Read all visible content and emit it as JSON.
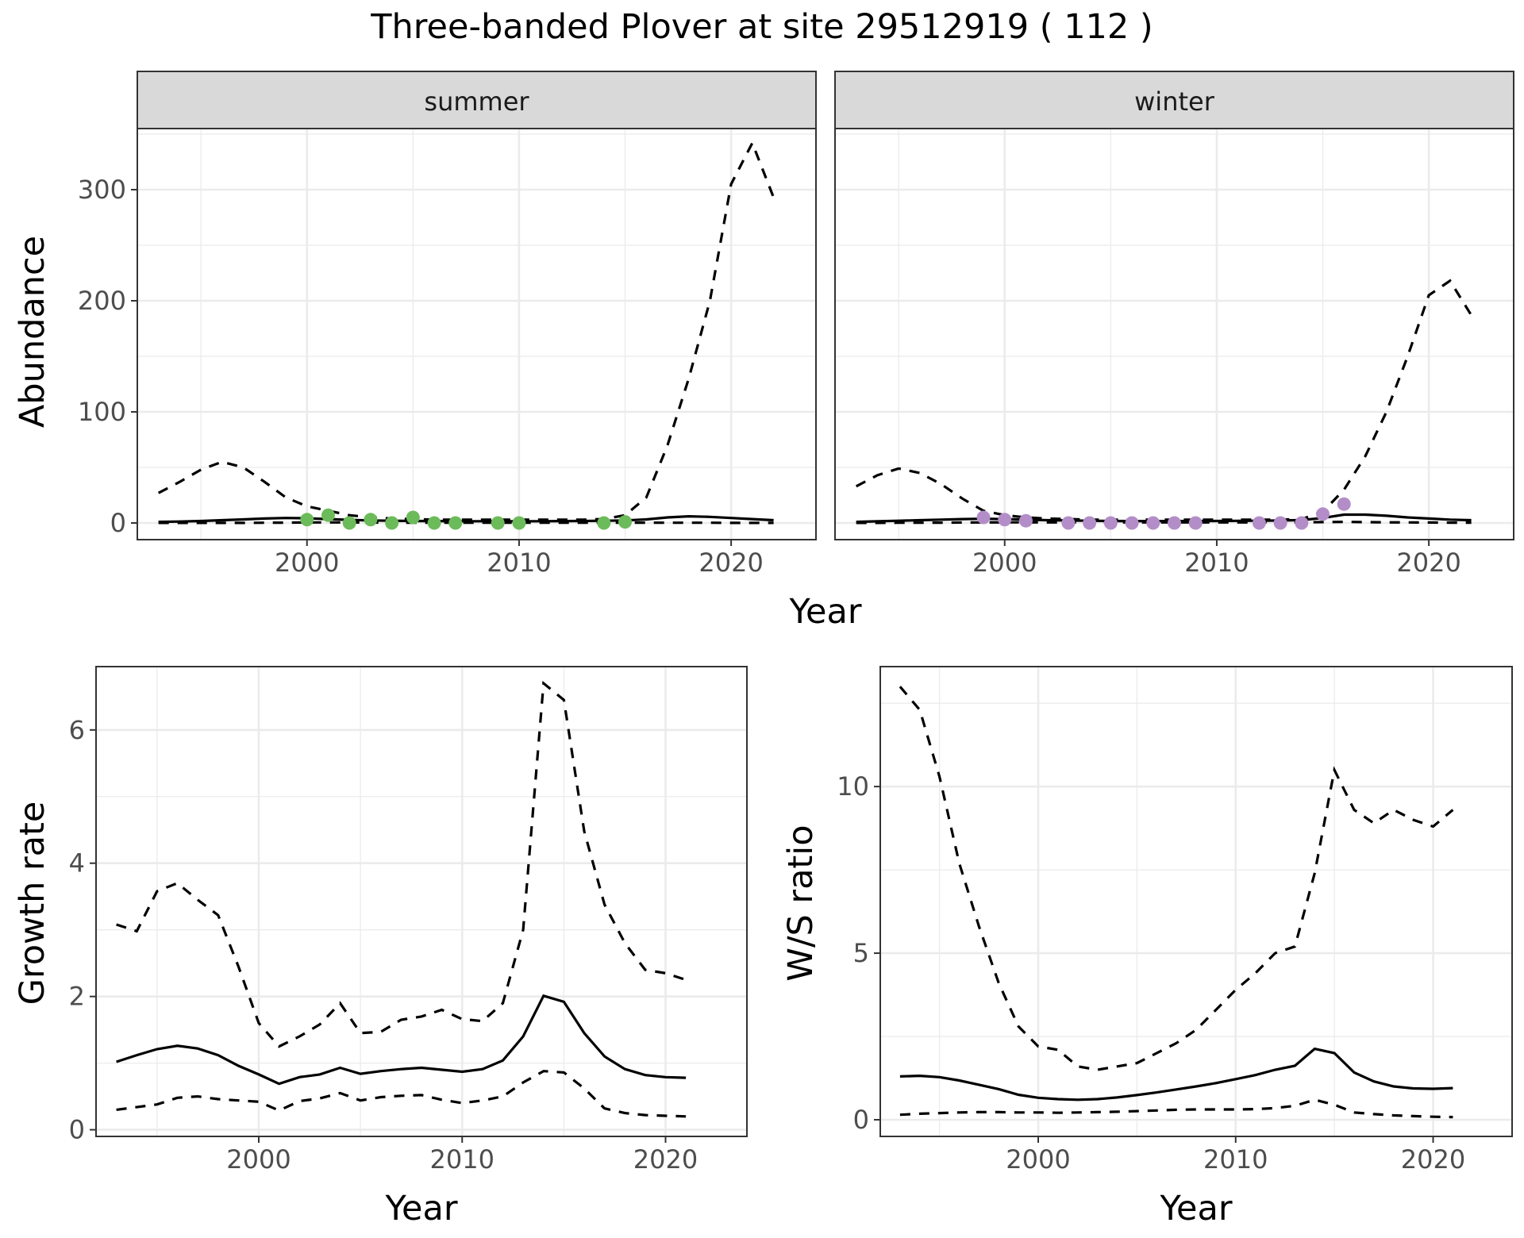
{
  "figure_title": "Three-banded Plover at site 29512919 ( 112 )",
  "colors": {
    "summer_points": "#6cbb5a",
    "winter_points": "#b38dc8",
    "lines": "#000000",
    "strip_fill": "#d9d9d9"
  },
  "chart_data": [
    {
      "type": "line",
      "facet": "summer",
      "xlabel": "Year",
      "ylabel": "Abundance",
      "xlim": [
        1992,
        2024
      ],
      "ylim": [
        -15,
        355
      ],
      "x_ticks": [
        2000,
        2010,
        2020
      ],
      "y_ticks": [
        0,
        100,
        200,
        300
      ],
      "grid": true,
      "x": [
        1993,
        1994,
        1995,
        1996,
        1997,
        1998,
        1999,
        2000,
        2001,
        2002,
        2003,
        2004,
        2005,
        2006,
        2007,
        2008,
        2009,
        2010,
        2011,
        2012,
        2013,
        2014,
        2015,
        2016,
        2017,
        2018,
        2019,
        2020,
        2021,
        2022
      ],
      "series": [
        {
          "role": "estimate",
          "style": "solid",
          "values": [
            1,
            1.3,
            1.8,
            2.5,
            3.2,
            4,
            4.5,
            4.2,
            3.5,
            2.8,
            2.3,
            2,
            1.8,
            1.7,
            1.6,
            1.6,
            1.6,
            1.6,
            1.6,
            1.7,
            1.8,
            2,
            2.3,
            3.2,
            5,
            6,
            5.5,
            4.5,
            3.5,
            2.5
          ]
        },
        {
          "role": "upper",
          "style": "dashed",
          "values": [
            27,
            37,
            48,
            55,
            50,
            37,
            23,
            15,
            11,
            7,
            5,
            4,
            3.5,
            3,
            3,
            3,
            3,
            3,
            3,
            3,
            3,
            3.5,
            7,
            23,
            70,
            130,
            200,
            305,
            342,
            293
          ]
        },
        {
          "role": "lower",
          "style": "dashed",
          "values": [
            0.1,
            0.1,
            0.1,
            0.1,
            0.1,
            0.2,
            0.3,
            0.5,
            0.5,
            0.5,
            0.4,
            0.3,
            0.3,
            0.3,
            0.3,
            0.3,
            0.3,
            0.3,
            0.3,
            0.3,
            0.3,
            0.3,
            0.3,
            0.3,
            0.2,
            0.2,
            0.2,
            0.1,
            0.1,
            0.1
          ]
        }
      ],
      "observed": {
        "x": [
          2000,
          2001,
          2002,
          2003,
          2004,
          2005,
          2006,
          2007,
          2009,
          2010,
          2014,
          2015
        ],
        "y": [
          3,
          7,
          0,
          3,
          0,
          5,
          0,
          0,
          0,
          0,
          0,
          1
        ]
      }
    },
    {
      "type": "line",
      "facet": "winter",
      "xlabel": "Year",
      "ylabel": "Abundance",
      "xlim": [
        1992,
        2024
      ],
      "ylim": [
        -15,
        355
      ],
      "x_ticks": [
        2000,
        2010,
        2020
      ],
      "y_ticks": [
        0,
        100,
        200,
        300
      ],
      "grid": true,
      "x": [
        1993,
        1994,
        1995,
        1996,
        1997,
        1998,
        1999,
        2000,
        2001,
        2002,
        2003,
        2004,
        2005,
        2006,
        2007,
        2008,
        2009,
        2010,
        2011,
        2012,
        2013,
        2014,
        2015,
        2016,
        2017,
        2018,
        2019,
        2020,
        2021,
        2022
      ],
      "series": [
        {
          "role": "estimate",
          "style": "solid",
          "values": [
            1,
            1.5,
            2,
            2.5,
            3,
            3.5,
            3.8,
            3.5,
            3,
            2.5,
            2.2,
            2,
            1.8,
            1.7,
            1.7,
            1.7,
            1.8,
            1.8,
            1.9,
            2,
            2.2,
            2.6,
            4.5,
            7.5,
            7.5,
            6.5,
            5,
            4,
            3,
            2.5
          ]
        },
        {
          "role": "upper",
          "style": "dashed",
          "values": [
            33,
            43,
            49,
            45,
            35,
            22,
            11,
            7,
            5,
            4,
            3.5,
            3,
            3,
            3,
            3,
            3,
            3,
            3,
            3,
            3,
            3,
            3.5,
            10,
            30,
            60,
            100,
            150,
            205,
            218,
            187
          ]
        },
        {
          "role": "lower",
          "style": "dashed",
          "values": [
            0.1,
            0.1,
            0.2,
            0.2,
            0.3,
            0.4,
            0.5,
            0.6,
            0.6,
            0.5,
            0.5,
            0.5,
            0.5,
            0.5,
            0.5,
            0.5,
            0.5,
            0.5,
            0.5,
            0.5,
            0.5,
            0.6,
            0.8,
            1,
            0.8,
            0.6,
            0.5,
            0.4,
            0.3,
            0.3
          ]
        }
      ],
      "observed": {
        "x": [
          1999,
          2000,
          2001,
          2003,
          2004,
          2005,
          2006,
          2007,
          2008,
          2009,
          2012,
          2013,
          2014,
          2015,
          2016
        ],
        "y": [
          5,
          3,
          2,
          0,
          0,
          0,
          0,
          0,
          0,
          0,
          0,
          0,
          0,
          8,
          17
        ]
      }
    },
    {
      "type": "line",
      "xlabel": "Year",
      "ylabel": "Growth rate",
      "xlim": [
        1992,
        2024
      ],
      "ylim": [
        -0.1,
        6.95
      ],
      "x_ticks": [
        2000,
        2010,
        2020
      ],
      "y_ticks": [
        0,
        2,
        4,
        6
      ],
      "grid": true,
      "x": [
        1993,
        1994,
        1995,
        1996,
        1997,
        1998,
        1999,
        2000,
        2001,
        2002,
        2003,
        2004,
        2005,
        2006,
        2007,
        2008,
        2009,
        2010,
        2011,
        2012,
        2013,
        2014,
        2015,
        2016,
        2017,
        2018,
        2019,
        2020,
        2021
      ],
      "series": [
        {
          "role": "estimate",
          "style": "solid",
          "values": [
            1.02,
            1.12,
            1.21,
            1.26,
            1.22,
            1.12,
            0.96,
            0.83,
            0.69,
            0.79,
            0.83,
            0.93,
            0.84,
            0.88,
            0.91,
            0.93,
            0.9,
            0.87,
            0.91,
            1.04,
            1.4,
            2.01,
            1.92,
            1.45,
            1.1,
            0.91,
            0.82,
            0.79,
            0.78
          ]
        },
        {
          "role": "upper",
          "style": "dashed",
          "values": [
            3.08,
            2.98,
            3.58,
            3.7,
            3.45,
            3.22,
            2.45,
            1.6,
            1.25,
            1.4,
            1.58,
            1.9,
            1.45,
            1.47,
            1.65,
            1.7,
            1.8,
            1.66,
            1.63,
            1.9,
            3.0,
            6.7,
            6.45,
            4.48,
            3.38,
            2.8,
            2.4,
            2.35,
            2.25
          ]
        },
        {
          "role": "lower",
          "style": "dashed",
          "values": [
            0.3,
            0.34,
            0.38,
            0.48,
            0.5,
            0.46,
            0.44,
            0.42,
            0.29,
            0.43,
            0.47,
            0.55,
            0.44,
            0.49,
            0.51,
            0.52,
            0.45,
            0.4,
            0.44,
            0.5,
            0.71,
            0.88,
            0.86,
            0.62,
            0.32,
            0.25,
            0.22,
            0.21,
            0.2
          ]
        }
      ]
    },
    {
      "type": "line",
      "xlabel": "Year",
      "ylabel": "W/S ratio",
      "xlim": [
        1992,
        2024
      ],
      "ylim": [
        -0.5,
        13.6
      ],
      "x_ticks": [
        2000,
        2010,
        2020
      ],
      "y_ticks": [
        0,
        5,
        10
      ],
      "grid": true,
      "x": [
        1993,
        1994,
        1995,
        1996,
        1997,
        1998,
        1999,
        2000,
        2001,
        2002,
        2003,
        2004,
        2005,
        2006,
        2007,
        2008,
        2009,
        2010,
        2011,
        2012,
        2013,
        2014,
        2015,
        2016,
        2017,
        2018,
        2019,
        2020,
        2021
      ],
      "series": [
        {
          "role": "estimate",
          "style": "solid",
          "values": [
            1.3,
            1.32,
            1.28,
            1.18,
            1.05,
            0.92,
            0.75,
            0.66,
            0.62,
            0.6,
            0.62,
            0.67,
            0.74,
            0.82,
            0.91,
            1.0,
            1.1,
            1.22,
            1.34,
            1.5,
            1.62,
            2.13,
            2.0,
            1.42,
            1.15,
            1.0,
            0.94,
            0.93,
            0.95
          ]
        },
        {
          "role": "upper",
          "style": "dashed",
          "values": [
            13.0,
            12.3,
            10.3,
            7.7,
            5.8,
            4.1,
            2.8,
            2.2,
            2.1,
            1.6,
            1.5,
            1.6,
            1.7,
            2.0,
            2.3,
            2.7,
            3.3,
            3.9,
            4.4,
            5.0,
            5.2,
            7.4,
            10.5,
            9.3,
            8.9,
            9.3,
            9.0,
            8.8,
            9.3
          ]
        },
        {
          "role": "lower",
          "style": "dashed",
          "values": [
            0.15,
            0.18,
            0.2,
            0.22,
            0.23,
            0.23,
            0.22,
            0.22,
            0.21,
            0.22,
            0.23,
            0.24,
            0.26,
            0.28,
            0.3,
            0.31,
            0.31,
            0.31,
            0.32,
            0.35,
            0.42,
            0.6,
            0.45,
            0.22,
            0.17,
            0.13,
            0.11,
            0.09,
            0.08
          ]
        }
      ]
    }
  ]
}
